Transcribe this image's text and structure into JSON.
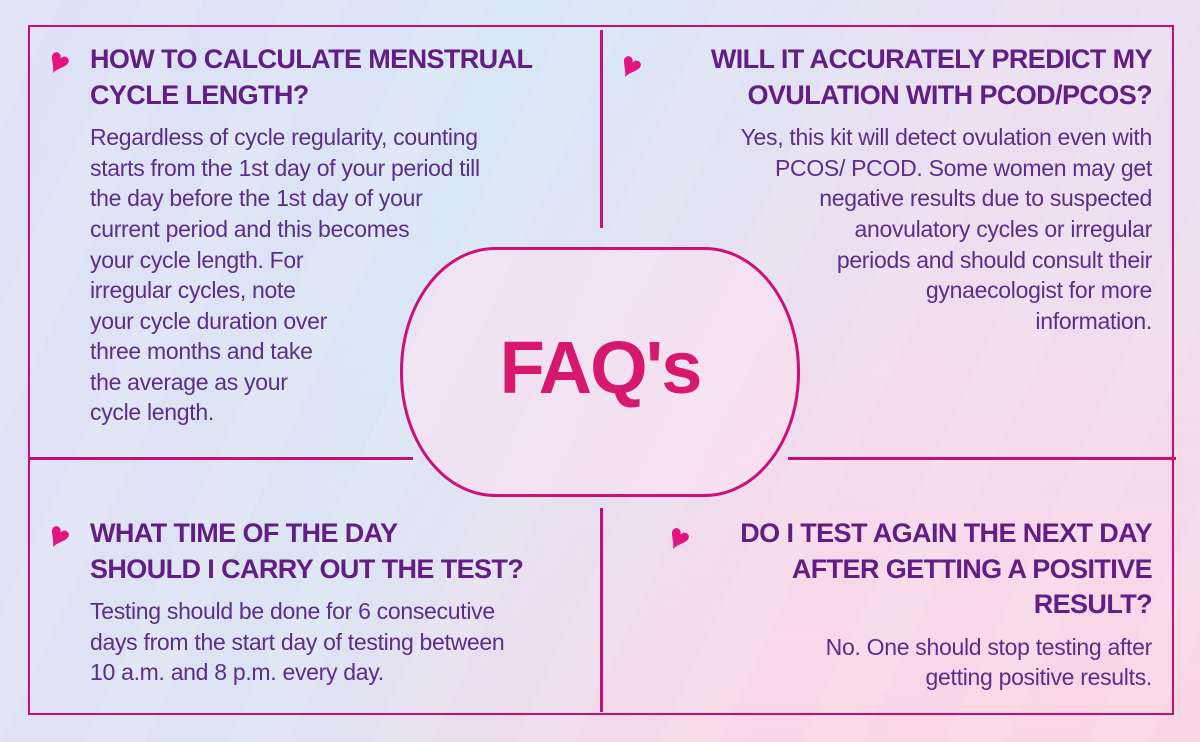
{
  "center": {
    "title": "FAQ's"
  },
  "icons": {
    "heart_glyph": "♥"
  },
  "colors": {
    "magenta_accent": "#e3147f",
    "divider_line": "#c60e74",
    "question_purple": "#621e85",
    "answer_purple": "#5d2d89",
    "faq_title_pink": "#d6186f"
  },
  "faqs": [
    {
      "question": "HOW TO CALCULATE MENSTRUAL\nCYCLE LENGTH?",
      "answer": "Regardless of cycle regularity, counting\nstarts from the 1st day of your period till\nthe day before the 1st day of your\ncurrent period and this becomes\nyour cycle length. For\nirregular cycles, note\nyour cycle duration over\nthree months and take\nthe average as your\ncycle length."
    },
    {
      "question": "WILL IT ACCURATELY PREDICT MY\nOVULATION WITH PCOD/PCOS?",
      "answer": "Yes, this kit will detect ovulation even with\nPCOS/ PCOD. Some women may get\nnegative results due to suspected\nanovulatory cycles or irregular\nperiods and should consult their\ngynaecologist for more\ninformation."
    },
    {
      "question": "WHAT TIME OF THE DAY\nSHOULD I CARRY OUT THE TEST?",
      "answer": "Testing should be done for 6 consecutive\ndays from the start day of testing between\n10 a.m. and 8 p.m. every day."
    },
    {
      "question": "DO I TEST AGAIN THE NEXT DAY\nAFTER GETTING A POSITIVE\nRESULT?",
      "answer": "No. One should stop testing after\ngetting positive results."
    }
  ]
}
